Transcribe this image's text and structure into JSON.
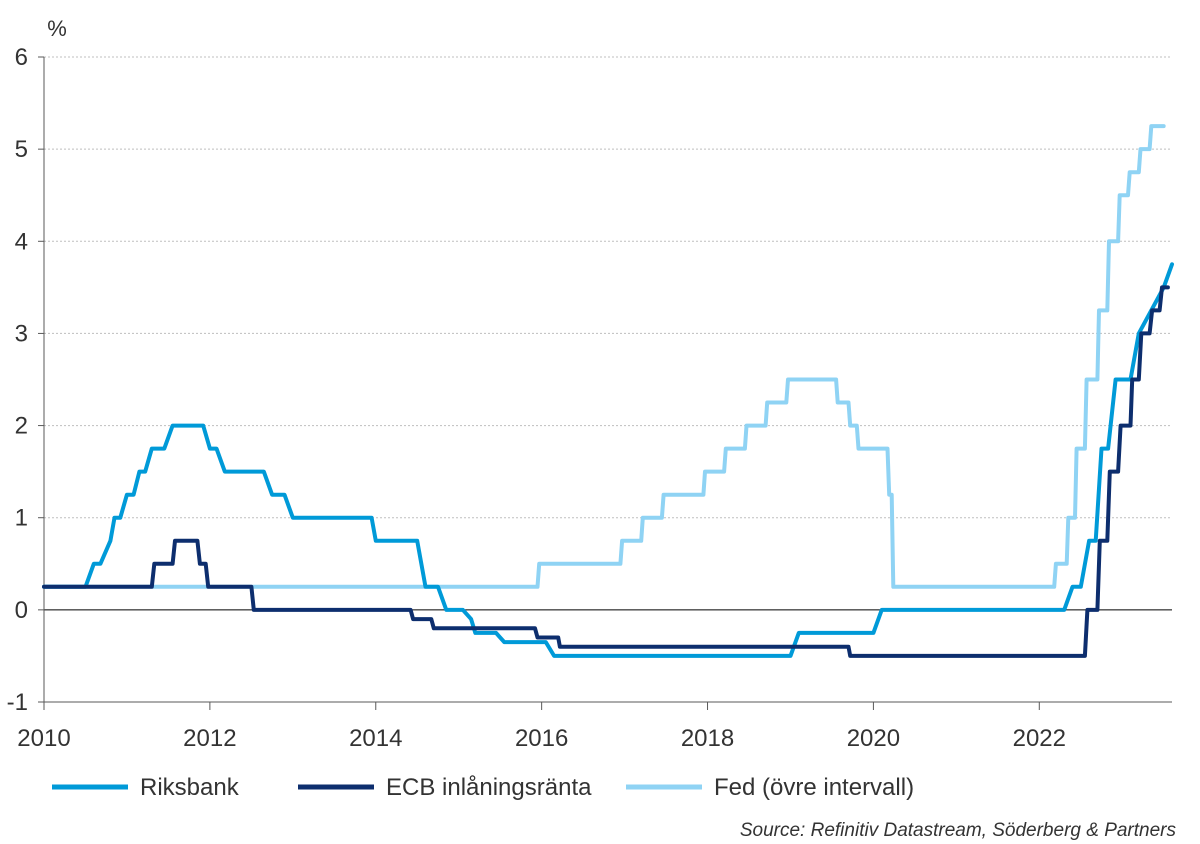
{
  "chart_data": {
    "type": "line",
    "title": "",
    "xlabel": "",
    "ylabel": "%",
    "source": "Source: Refinitiv Datastream, Söderberg & Partners",
    "xlim": [
      2010,
      2023.6
    ],
    "ylim": [
      -1,
      6
    ],
    "x_ticks": [
      "2010",
      "2012",
      "2014",
      "2016",
      "2018",
      "2020",
      "2022"
    ],
    "y_ticks": [
      "-1",
      "0",
      "1",
      "2",
      "3",
      "4",
      "5",
      "6"
    ],
    "grid": true,
    "legend_position": "bottom",
    "series": [
      {
        "name": "Riksbank",
        "color": "#009ad8",
        "points": [
          [
            2010.0,
            0.25
          ],
          [
            2010.5,
            0.25
          ],
          [
            2010.6,
            0.5
          ],
          [
            2010.68,
            0.5
          ],
          [
            2010.8,
            0.75
          ],
          [
            2010.85,
            1.0
          ],
          [
            2010.92,
            1.0
          ],
          [
            2011.0,
            1.25
          ],
          [
            2011.08,
            1.25
          ],
          [
            2011.15,
            1.5
          ],
          [
            2011.22,
            1.5
          ],
          [
            2011.3,
            1.75
          ],
          [
            2011.45,
            1.75
          ],
          [
            2011.55,
            2.0
          ],
          [
            2011.92,
            2.0
          ],
          [
            2012.0,
            1.75
          ],
          [
            2012.08,
            1.75
          ],
          [
            2012.18,
            1.5
          ],
          [
            2012.65,
            1.5
          ],
          [
            2012.75,
            1.25
          ],
          [
            2012.9,
            1.25
          ],
          [
            2013.0,
            1.0
          ],
          [
            2013.95,
            1.0
          ],
          [
            2014.0,
            0.75
          ],
          [
            2014.5,
            0.75
          ],
          [
            2014.6,
            0.25
          ],
          [
            2014.75,
            0.25
          ],
          [
            2014.85,
            0.0
          ],
          [
            2015.05,
            0.0
          ],
          [
            2015.15,
            -0.1
          ],
          [
            2015.2,
            -0.25
          ],
          [
            2015.45,
            -0.25
          ],
          [
            2015.55,
            -0.35
          ],
          [
            2016.05,
            -0.35
          ],
          [
            2016.15,
            -0.5
          ],
          [
            2019.0,
            -0.5
          ],
          [
            2019.1,
            -0.25
          ],
          [
            2020.0,
            -0.25
          ],
          [
            2020.1,
            0.0
          ],
          [
            2022.3,
            0.0
          ],
          [
            2022.4,
            0.25
          ],
          [
            2022.5,
            0.25
          ],
          [
            2022.6,
            0.75
          ],
          [
            2022.68,
            0.75
          ],
          [
            2022.75,
            1.75
          ],
          [
            2022.83,
            1.75
          ],
          [
            2022.92,
            2.5
          ],
          [
            2023.1,
            2.5
          ],
          [
            2023.2,
            3.0
          ],
          [
            2023.5,
            3.5
          ],
          [
            2023.6,
            3.75
          ]
        ]
      },
      {
        "name": "ECB inlåningsränta",
        "color": "#0d2e6e",
        "points": [
          [
            2010.0,
            0.25
          ],
          [
            2011.3,
            0.25
          ],
          [
            2011.33,
            0.5
          ],
          [
            2011.55,
            0.5
          ],
          [
            2011.58,
            0.75
          ],
          [
            2011.85,
            0.75
          ],
          [
            2011.88,
            0.5
          ],
          [
            2011.95,
            0.5
          ],
          [
            2011.98,
            0.25
          ],
          [
            2012.5,
            0.25
          ],
          [
            2012.53,
            0.0
          ],
          [
            2014.42,
            0.0
          ],
          [
            2014.45,
            -0.1
          ],
          [
            2014.67,
            -0.1
          ],
          [
            2014.7,
            -0.2
          ],
          [
            2015.92,
            -0.2
          ],
          [
            2015.95,
            -0.3
          ],
          [
            2016.2,
            -0.3
          ],
          [
            2016.22,
            -0.4
          ],
          [
            2019.7,
            -0.4
          ],
          [
            2019.72,
            -0.5
          ],
          [
            2022.55,
            -0.5
          ],
          [
            2022.58,
            0.0
          ],
          [
            2022.7,
            0.0
          ],
          [
            2022.73,
            0.75
          ],
          [
            2022.82,
            0.75
          ],
          [
            2022.85,
            1.5
          ],
          [
            2022.95,
            1.5
          ],
          [
            2022.98,
            2.0
          ],
          [
            2023.1,
            2.0
          ],
          [
            2023.12,
            2.5
          ],
          [
            2023.2,
            2.5
          ],
          [
            2023.23,
            3.0
          ],
          [
            2023.33,
            3.0
          ],
          [
            2023.36,
            3.25
          ],
          [
            2023.45,
            3.25
          ],
          [
            2023.48,
            3.5
          ],
          [
            2023.55,
            3.5
          ]
        ]
      },
      {
        "name": "Fed (övre intervall)",
        "color": "#8fd3f4",
        "points": [
          [
            2010.0,
            0.25
          ],
          [
            2015.95,
            0.25
          ],
          [
            2015.97,
            0.5
          ],
          [
            2016.95,
            0.5
          ],
          [
            2016.97,
            0.75
          ],
          [
            2017.2,
            0.75
          ],
          [
            2017.22,
            1.0
          ],
          [
            2017.45,
            1.0
          ],
          [
            2017.47,
            1.25
          ],
          [
            2017.95,
            1.25
          ],
          [
            2017.97,
            1.5
          ],
          [
            2018.2,
            1.5
          ],
          [
            2018.22,
            1.75
          ],
          [
            2018.45,
            1.75
          ],
          [
            2018.47,
            2.0
          ],
          [
            2018.7,
            2.0
          ],
          [
            2018.72,
            2.25
          ],
          [
            2018.95,
            2.25
          ],
          [
            2018.97,
            2.5
          ],
          [
            2019.55,
            2.5
          ],
          [
            2019.57,
            2.25
          ],
          [
            2019.7,
            2.25
          ],
          [
            2019.72,
            2.0
          ],
          [
            2019.8,
            2.0
          ],
          [
            2019.82,
            1.75
          ],
          [
            2020.17,
            1.75
          ],
          [
            2020.19,
            1.25
          ],
          [
            2020.22,
            1.25
          ],
          [
            2020.24,
            0.25
          ],
          [
            2022.18,
            0.25
          ],
          [
            2022.2,
            0.5
          ],
          [
            2022.33,
            0.5
          ],
          [
            2022.35,
            1.0
          ],
          [
            2022.43,
            1.0
          ],
          [
            2022.45,
            1.75
          ],
          [
            2022.55,
            1.75
          ],
          [
            2022.57,
            2.5
          ],
          [
            2022.7,
            2.5
          ],
          [
            2022.72,
            3.25
          ],
          [
            2022.82,
            3.25
          ],
          [
            2022.84,
            4.0
          ],
          [
            2022.95,
            4.0
          ],
          [
            2022.97,
            4.5
          ],
          [
            2023.07,
            4.5
          ],
          [
            2023.09,
            4.75
          ],
          [
            2023.2,
            4.75
          ],
          [
            2023.22,
            5.0
          ],
          [
            2023.33,
            5.0
          ],
          [
            2023.35,
            5.25
          ],
          [
            2023.5,
            5.25
          ]
        ]
      }
    ]
  }
}
